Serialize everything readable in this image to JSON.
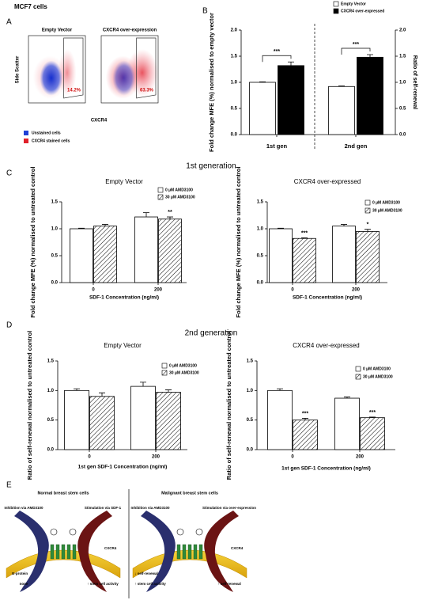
{
  "figure": {
    "title": "MCF7 cells",
    "panel_labels": [
      "A",
      "B",
      "C",
      "D",
      "E"
    ],
    "sections": [
      "1st generation",
      "2nd generation"
    ]
  },
  "flow": {
    "y_label": "Side Scatter",
    "x_label": "CXCR4",
    "plots": [
      {
        "title": "Empty Vector",
        "gate_label": "14.2%"
      },
      {
        "title": "CXCR4 over-expression",
        "gate_label": "63.3%"
      }
    ],
    "legend": [
      {
        "label": "Unstained cells",
        "color": "#1f3fd6"
      },
      {
        "label": "CXCR4 stained cells",
        "color": "#e0202a"
      }
    ]
  },
  "chart_data": [
    {
      "type": "bar",
      "y_label": "Fold change MFE (%) normalised to empty vector",
      "y2_label": "Ratio of self-renewal",
      "categories": [
        "1st gen",
        "2nd gen"
      ],
      "series": [
        {
          "name": "Empty Vector",
          "color": "#ffffff",
          "values": [
            1.0,
            0.92
          ],
          "errors": [
            0.01,
            0.01
          ]
        },
        {
          "name": "CXCR4 over-expressed",
          "color": "#000000",
          "values": [
            1.32,
            1.48
          ],
          "errors": [
            0.07,
            0.05
          ]
        }
      ],
      "significance": [
        "***",
        "***"
      ],
      "ylim": [
        0,
        2
      ],
      "yticks": [
        {
          "value": 0,
          "label": "0.0"
        },
        0.5,
        {
          "value": 1,
          "label": "1.0"
        },
        1.5,
        {
          "value": 2,
          "label": "2.0"
        }
      ],
      "y2lim": [
        0,
        2
      ],
      "y2ticks": [
        {
          "value": 0,
          "label": "0.0"
        },
        0.5,
        {
          "value": 1,
          "label": "1.0"
        },
        1.5,
        {
          "value": 2,
          "label": "2.0"
        }
      ]
    },
    {
      "type": "bar",
      "title": "Empty Vector",
      "y_label": "Fold change MFE (%) normalised to untreated control",
      "x_label": "SDF-1 Concentration (ng/ml)",
      "categories": [
        "0",
        "200"
      ],
      "series": [
        {
          "name": "0 µM AMD3100",
          "color": "#ffffff",
          "values": [
            1.0,
            1.22
          ],
          "errors": [
            0.01,
            0.08
          ]
        },
        {
          "name": "30 µM AMD3100",
          "color": "#000000",
          "pattern": "hatch",
          "values": [
            1.05,
            1.18
          ],
          "errors": [
            0.03,
            0.04
          ],
          "annotations": [
            null,
            "**"
          ]
        }
      ],
      "annotations_top": [
        null,
        "**"
      ],
      "ylim": [
        0,
        1.5
      ],
      "yticks": [
        {
          "value": 0,
          "label": "0.0"
        },
        0.5,
        {
          "value": 1,
          "label": "1.0"
        },
        1.5
      ]
    },
    {
      "type": "bar",
      "title": "CXCR4 over-expressed",
      "y_label": "Fold change MFE (%) normalised to untreated control",
      "x_label": "SDF-1 Concentration (ng/ml)",
      "categories": [
        "0",
        "200"
      ],
      "series": [
        {
          "name": "0 µM AMD3100",
          "color": "#ffffff",
          "values": [
            1.0,
            1.05
          ],
          "errors": [
            0.01,
            0.03
          ]
        },
        {
          "name": "30 µM AMD3100",
          "color": "#000000",
          "pattern": "hatch",
          "values": [
            0.82,
            0.95
          ],
          "errors": [
            0.01,
            0.04
          ],
          "annotations": [
            "***",
            "*"
          ]
        }
      ],
      "ylim": [
        0,
        1.5
      ],
      "yticks": [
        {
          "value": 0,
          "label": "0.0"
        },
        0.5,
        {
          "value": 1,
          "label": "1.0"
        },
        1.5
      ]
    },
    {
      "type": "bar",
      "title": "Empty Vector",
      "y_label": "Ratio of self-renewal normalised to untreated control",
      "x_label": "1st gen SDF-1 Concentration (ng/ml)",
      "categories": [
        "0",
        "200"
      ],
      "series": [
        {
          "name": "0 µM AMD3100",
          "color": "#ffffff",
          "values": [
            1.0,
            1.07
          ],
          "errors": [
            0.03,
            0.07
          ]
        },
        {
          "name": "30 µM AMD3100",
          "color": "#000000",
          "pattern": "hatch",
          "values": [
            0.9,
            0.97
          ],
          "errors": [
            0.06,
            0.04
          ]
        }
      ],
      "ylim": [
        0,
        1.5
      ],
      "yticks": [
        {
          "value": 0,
          "label": "0.0"
        },
        0.5,
        {
          "value": 1,
          "label": "1.0"
        },
        1.5
      ]
    },
    {
      "type": "bar",
      "title": "CXCR4 over-expressed",
      "y_label": "Ratio of self-renewal normalised to untreated control",
      "x_label": "1st gen SDF-1 Concentration (ng/ml)",
      "categories": [
        "0",
        "200"
      ],
      "series": [
        {
          "name": "0 µM AMD3100",
          "color": "#ffffff",
          "values": [
            1.0,
            0.87
          ],
          "errors": [
            0.03,
            0.02
          ]
        },
        {
          "name": "30 µM AMD3100",
          "color": "#000000",
          "pattern": "hatch",
          "values": [
            0.5,
            0.54
          ],
          "errors": [
            0.03,
            0.01
          ],
          "annotations": [
            "***",
            "***"
          ]
        }
      ],
      "ylim": [
        0,
        1.5
      ],
      "yticks": [
        {
          "value": 0,
          "label": "0.0"
        },
        0.5,
        {
          "value": 1,
          "label": "1.0"
        },
        1.5
      ]
    }
  ],
  "diagram": {
    "panels": [
      {
        "title": "Normal breast stem cells",
        "labels": [
          "Inhibition via AMD3100",
          "Stimulation via SDF-1",
          "CXCR4",
          "G-protein",
          "none",
          "↑ stem cell activity"
        ]
      },
      {
        "title": "Malignant breast stem cells",
        "labels": [
          "Inhibition via AMD3100",
          "Stimulation via over-expression",
          "CXCR4",
          "↓ self-renewal",
          "↑ stem cell activity",
          "↑ self-renewal"
        ]
      }
    ]
  }
}
